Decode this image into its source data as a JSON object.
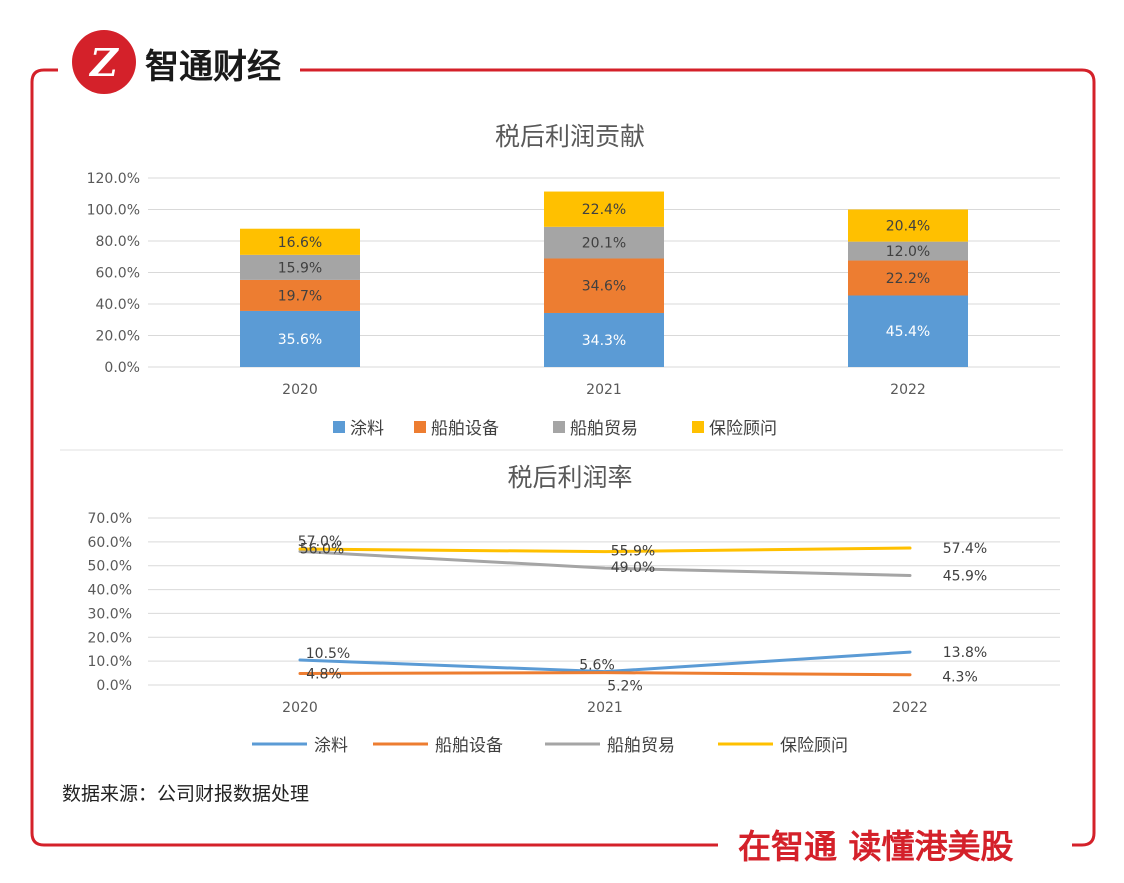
{
  "brand": {
    "logo_glyph": "Z",
    "name": "智通财经",
    "slogan": "在智通  读懂港美股"
  },
  "colors": {
    "frame": "#d4212a",
    "coating": "#5b9bd5",
    "marine_equipment": "#ed7d31",
    "marine_trade": "#a5a5a5",
    "insurance": "#ffc000",
    "grid": "#d9d9d9"
  },
  "source_note": "数据来源：公司财报数据处理",
  "chart_data": [
    {
      "type": "bar",
      "stacked": true,
      "title": "税后利润贡献",
      "categories": [
        "2020",
        "2021",
        "2022"
      ],
      "yticks": [
        "0.0%",
        "20.0%",
        "40.0%",
        "60.0%",
        "80.0%",
        "100.0%",
        "120.0%"
      ],
      "ylim": [
        0,
        120
      ],
      "series": [
        {
          "name": "涂料",
          "values": [
            35.6,
            34.3,
            45.4
          ],
          "labels": [
            "35.6%",
            "34.3%",
            "45.4%"
          ]
        },
        {
          "name": "船舶设备",
          "values": [
            19.7,
            34.6,
            22.2
          ],
          "labels": [
            "19.7%",
            "34.6%",
            "22.2%"
          ]
        },
        {
          "name": "船舶贸易",
          "values": [
            15.9,
            20.1,
            12.0
          ],
          "labels": [
            "15.9%",
            "20.1%",
            "12.0%"
          ]
        },
        {
          "name": "保险顾问",
          "values": [
            16.6,
            22.4,
            20.4
          ],
          "labels": [
            "16.6%",
            "22.4%",
            "20.4%"
          ]
        }
      ],
      "legend_position": "bottom"
    },
    {
      "type": "line",
      "title": "税后利润率",
      "categories": [
        "2020",
        "2021",
        "2022"
      ],
      "yticks": [
        "0.0%",
        "10.0%",
        "20.0%",
        "30.0%",
        "40.0%",
        "50.0%",
        "60.0%",
        "70.0%"
      ],
      "ylim": [
        0,
        70
      ],
      "series": [
        {
          "name": "涂料",
          "values": [
            10.5,
            5.6,
            13.8
          ],
          "labels": [
            "10.5%",
            "5.6%",
            "13.8%"
          ]
        },
        {
          "name": "船舶设备",
          "values": [
            4.8,
            5.2,
            4.3
          ],
          "labels": [
            "4.8%",
            "5.2%",
            "4.3%"
          ]
        },
        {
          "name": "船舶贸易",
          "values": [
            56.0,
            49.0,
            45.9
          ],
          "labels": [
            "56.0%",
            "49.0%",
            "45.9%"
          ]
        },
        {
          "name": "保险顾问",
          "values": [
            57.0,
            55.9,
            57.4
          ],
          "labels": [
            "57.0%",
            "55.9%",
            "57.4%"
          ]
        }
      ],
      "legend_position": "bottom"
    }
  ]
}
